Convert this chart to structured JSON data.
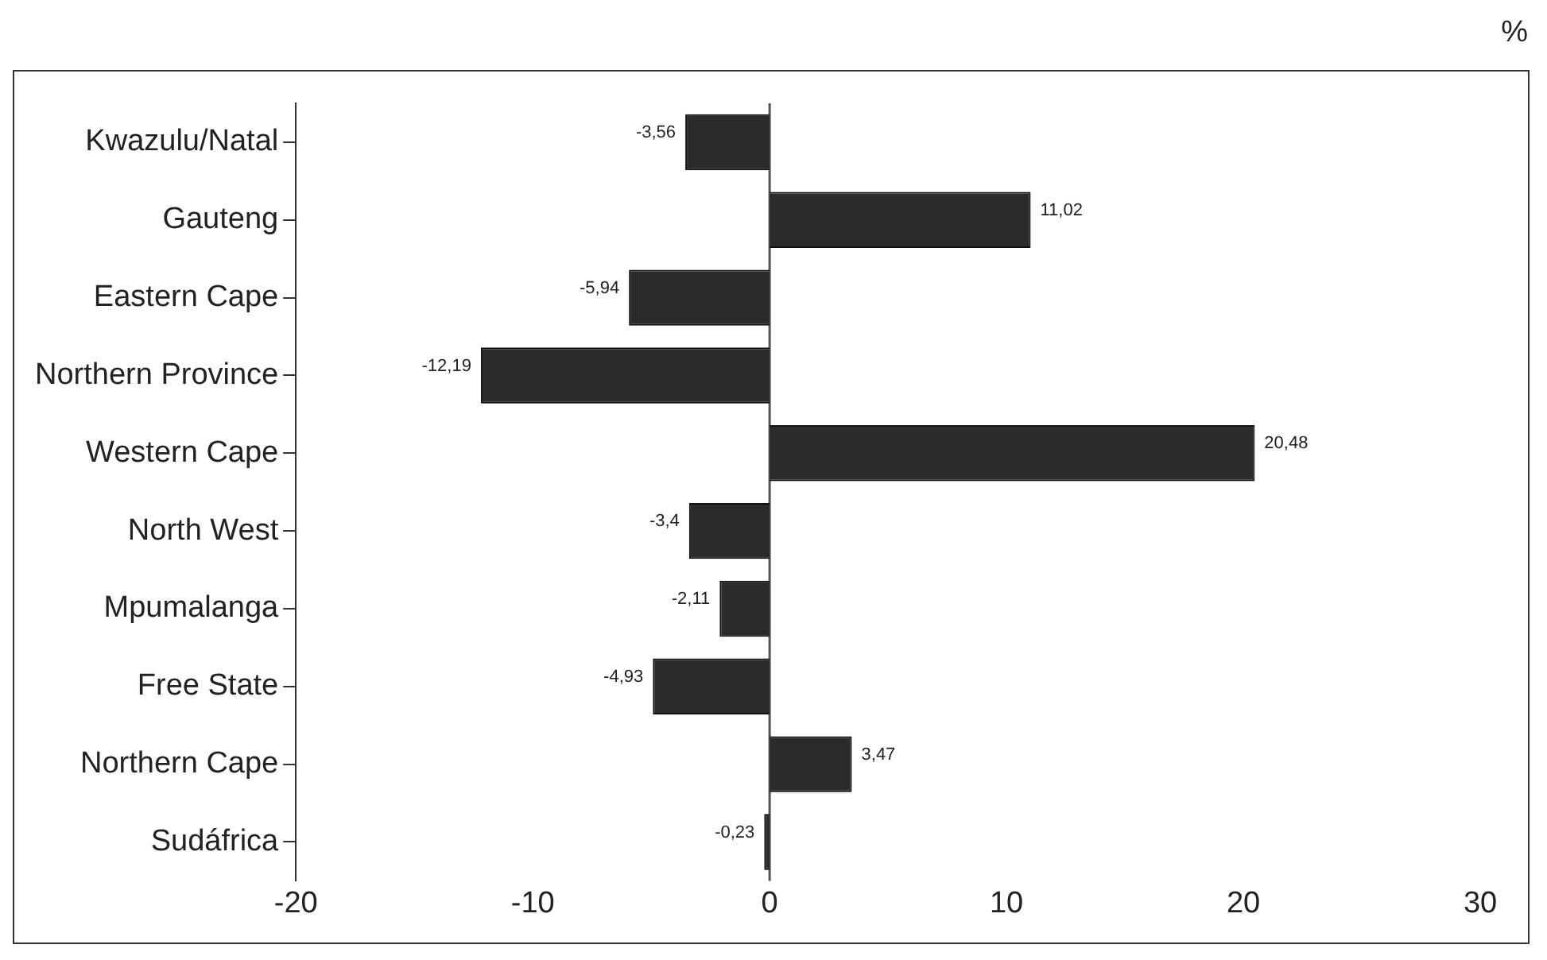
{
  "chart_data": {
    "type": "bar",
    "orientation": "horizontal",
    "categories": [
      "Kwazulu/Natal",
      "Gauteng",
      "Eastern Cape",
      "Northern Province",
      "Western Cape",
      "North West",
      "Mpumalanga",
      "Free State",
      "Northern Cape",
      "Sudáfrica"
    ],
    "values": [
      -3.56,
      11.02,
      -5.94,
      -12.19,
      20.48,
      -3.4,
      -2.11,
      -4.93,
      3.47,
      -0.23
    ],
    "value_labels": [
      "-3,56",
      "11,02",
      "-5,94",
      "-12,19",
      "20,48",
      "-3,4",
      "-2,11",
      "-4,93",
      "3,47",
      "-0,23"
    ],
    "color": "#2b2b2b",
    "xlim": [
      -20,
      30
    ],
    "xticks": [
      -20,
      -10,
      0,
      10,
      20,
      30
    ],
    "ref_lines": [
      {
        "axis": "x",
        "value": 0,
        "color": "#555555"
      }
    ],
    "annotations": [
      "%"
    ],
    "grid": false,
    "legend": false
  }
}
